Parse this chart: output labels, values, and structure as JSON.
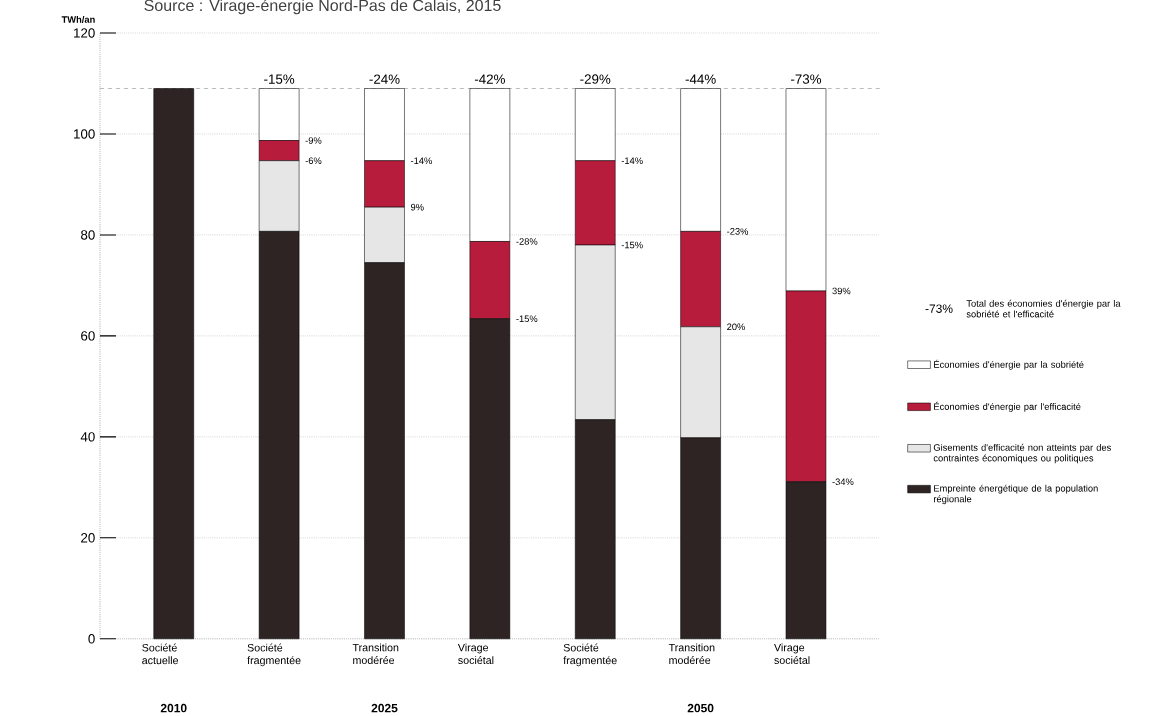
{
  "chart_data": {
    "type": "bar",
    "stacked": true,
    "title": "Source : Virage-énergie Nord-Pas de Calais, 2015",
    "ylabel": "TWh/an",
    "categories": [
      "Société actuelle",
      "Société fragmentée",
      "Transition modérée",
      "Virage sociétal",
      "Société fragmentée",
      "Transition modérée",
      "Virage sociétal"
    ],
    "series": [
      {
        "name": "Empreinte énergétique de la population régionale",
        "color": "#2e2424",
        "values": [
          109,
          80.7,
          74.5,
          63.4,
          43.4,
          39.8,
          31.1
        ]
      },
      {
        "name": "Gisements d'efficacité non atteints par des contraintes économiques ou politiques",
        "color": "#e6e6e6",
        "values": [
          0,
          14,
          11,
          0,
          34.6,
          22,
          0
        ]
      },
      {
        "name": "Économies d'énergie par l'efficacité",
        "color": "#b81c3c",
        "values": [
          0,
          4,
          9.2,
          15.3,
          16.7,
          18.9,
          37.8
        ]
      },
      {
        "name": "Économies d'énergie par la sobriété",
        "color": "#ffffff",
        "values": [
          0,
          10.3,
          14.3,
          30.3,
          14.3,
          28.3,
          40.1
        ]
      }
    ],
    "ylim": [
      0,
      120
    ],
    "yticks": [
      0,
      20,
      40,
      60,
      80,
      100,
      120
    ],
    "grid": "y",
    "legend": "right",
    "ref_lines": [
      {
        "axis": "y",
        "value": 109,
        "line_style": "dashed"
      }
    ],
    "annotations": [
      "2010",
      "2025",
      "2050",
      "-15%",
      "-24%",
      "-42%",
      "-29%",
      "-44%",
      "-73%",
      "-9%",
      "-14%",
      "-28%",
      "-14%",
      "-23%",
      "39%",
      "-6%",
      "9%",
      "-15%",
      "-15%",
      "20%",
      "-34%",
      "-73%",
      "Total des économies d'énergie par la sobriété et l'efficacité"
    ]
  }
}
